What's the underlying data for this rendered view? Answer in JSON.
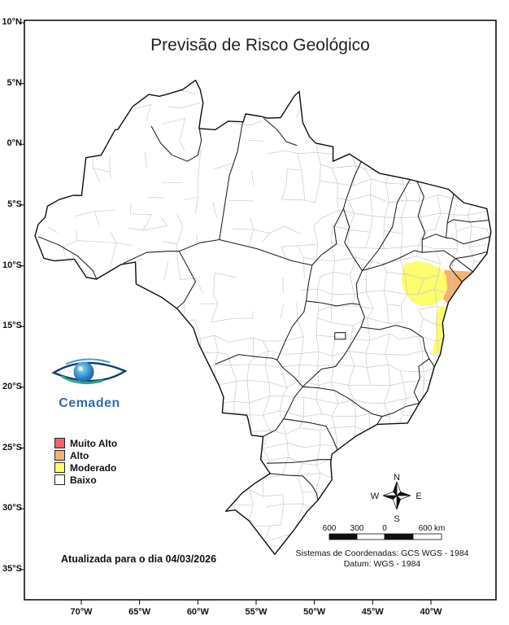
{
  "title": "Previsão de Risco Geológico",
  "axes": {
    "lat_labels": [
      "10°N",
      "5°N",
      "0°N",
      "5°S",
      "10°S",
      "15°S",
      "20°S",
      "25°S",
      "30°S",
      "35°S"
    ],
    "lon_labels": [
      "70°W",
      "65°W",
      "60°W",
      "55°W",
      "50°W",
      "45°W",
      "40°W"
    ]
  },
  "logo": {
    "text": "Cemaden"
  },
  "legend": {
    "items": [
      {
        "label": "Muito Alto",
        "color": "#f2626a"
      },
      {
        "label": "Alto",
        "color": "#f5b06e"
      },
      {
        "label": "Moderado",
        "color": "#fcfc6e"
      },
      {
        "label": "Baixo",
        "color": "#ffffff"
      }
    ]
  },
  "map": {
    "regions": [
      {
        "risk": "Alto"
      },
      {
        "risk": "Moderado"
      },
      {
        "risk": "Moderado"
      }
    ]
  },
  "updated_text": "Atualizada para o dia 04/03/2026",
  "compass": {
    "n": "N",
    "e": "E",
    "s": "S",
    "w": "W"
  },
  "scale_bar": {
    "labels": [
      "600",
      "300",
      "0",
      "600 km"
    ]
  },
  "footer": {
    "coordinate_system": "Sistemas de Coordenadas: GCS WGS - 1984",
    "datum": "Datum: WGS - 1984"
  }
}
